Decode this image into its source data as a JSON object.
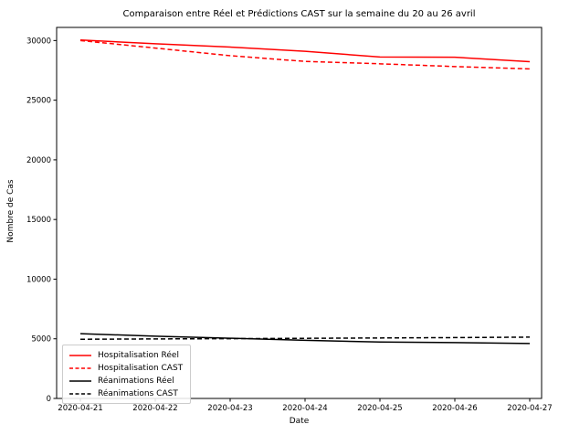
{
  "chart_data": {
    "type": "line",
    "title": "Comparaison entre Réel et Prédictions CAST sur la semaine du 20 au 26 avril",
    "xlabel": "Date",
    "ylabel": "Nombre de Cas",
    "x": [
      "2020-04-21",
      "2020-04-22",
      "2020-04-23",
      "2020-04-24",
      "2020-04-25",
      "2020-04-26",
      "2020-04-27"
    ],
    "yticks": [
      0,
      5000,
      10000,
      15000,
      20000,
      25000,
      30000
    ],
    "ylim": [
      0,
      31100
    ],
    "grid": false,
    "legend_position": "lower left",
    "series": [
      {
        "name": "Hospitalisation Réel",
        "color": "#ff0000",
        "style": "solid",
        "values": [
          30050,
          29730,
          29450,
          29100,
          28620,
          28600,
          28230
        ]
      },
      {
        "name": "Hospitalisation CAST",
        "color": "#ff0000",
        "style": "dashed",
        "values": [
          30000,
          29370,
          28730,
          28250,
          28050,
          27820,
          27620
        ]
      },
      {
        "name": "Réanimations Réel",
        "color": "#000000",
        "style": "solid",
        "values": [
          5430,
          5220,
          5050,
          4870,
          4730,
          4680,
          4610
        ]
      },
      {
        "name": "Réanimations CAST",
        "color": "#000000",
        "style": "dashed",
        "values": [
          4960,
          4990,
          5010,
          5040,
          5070,
          5100,
          5140
        ]
      }
    ]
  }
}
